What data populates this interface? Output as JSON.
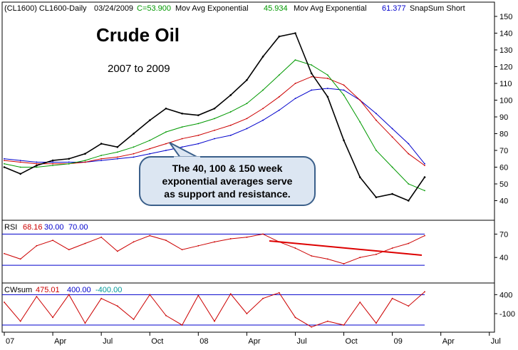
{
  "header": {
    "symbol": "(CL1600) CL1600-Daily",
    "date": "03/24/2009",
    "close": "C=53.900",
    "ma1_label": "Mov Avg Exponential",
    "ma1_value": "45.934",
    "ma2_label": "Mov Avg Exponential",
    "ma2_value": "61.377",
    "snap_label": "SnapSum Short"
  },
  "annotation": {
    "title": "Crude Oil",
    "subtitle": "2007 to 2009",
    "callout_lines": [
      "The 40, 100 & 150 week",
      "exponential averages serve",
      "as support and resistance."
    ]
  },
  "colors": {
    "price": "#000000",
    "ema40": "#009900",
    "ema100": "#cc0000",
    "ema150": "#0000cc",
    "rsi": "#cc0000",
    "bands": "#0000cc",
    "trendline": "#dd0000",
    "callout_fill": "#dce6f2",
    "callout_stroke": "#3a5f8a"
  },
  "chart_data": [
    {
      "type": "line",
      "panel": "price",
      "ylim": [
        30,
        150
      ],
      "yticks": [
        "150",
        "140",
        "130",
        "120",
        "110",
        "100",
        "90",
        "80",
        "70",
        "60",
        "50",
        "40"
      ],
      "x": [
        "2007-01",
        "2007-02",
        "2007-03",
        "2007-04",
        "2007-05",
        "2007-06",
        "2007-07",
        "2007-08",
        "2007-09",
        "2007-10",
        "2007-11",
        "2007-12",
        "2008-01",
        "2008-02",
        "2008-03",
        "2008-04",
        "2008-05",
        "2008-06",
        "2008-07",
        "2008-08",
        "2008-09",
        "2008-10",
        "2008-11",
        "2008-12",
        "2009-01",
        "2009-02",
        "2009-03"
      ],
      "xtick_labels": [
        "07",
        "Apr",
        "Jul",
        "Oct",
        "08",
        "Apr",
        "Jul",
        "Oct",
        "09",
        "Apr",
        "Jul"
      ],
      "series": [
        {
          "key": "price",
          "values": [
            60,
            56,
            61,
            64,
            65,
            68,
            74,
            72,
            80,
            88,
            95,
            92,
            91,
            95,
            103,
            112,
            126,
            138,
            140,
            116,
            102,
            76,
            54,
            42,
            44,
            40,
            54
          ]
        },
        {
          "key": "ema40",
          "values": [
            62,
            60,
            60,
            61,
            62,
            64,
            67,
            69,
            72,
            76,
            81,
            84,
            86,
            89,
            93,
            98,
            106,
            115,
            124,
            121,
            115,
            103,
            87,
            70,
            60,
            50,
            46
          ]
        },
        {
          "key": "ema100",
          "values": [
            64,
            63,
            62,
            62,
            62,
            63,
            65,
            66,
            68,
            71,
            74,
            77,
            79,
            82,
            85,
            89,
            95,
            102,
            110,
            114,
            113,
            109,
            100,
            88,
            78,
            68,
            61
          ]
        },
        {
          "key": "ema150",
          "values": [
            65,
            64,
            63,
            63,
            63,
            63,
            64,
            65,
            66,
            68,
            70,
            72,
            74,
            77,
            79,
            83,
            88,
            94,
            101,
            106,
            107,
            106,
            100,
            92,
            83,
            74,
            62
          ]
        }
      ]
    },
    {
      "type": "line",
      "panel": "rsi",
      "label": "RSI",
      "value": "68.16",
      "lower_band": "30.00",
      "upper_band": "70.00",
      "ylim": [
        10,
        85
      ],
      "yticks": [
        "70",
        "40"
      ],
      "values": [
        45,
        38,
        55,
        62,
        50,
        58,
        66,
        48,
        60,
        68,
        62,
        50,
        55,
        60,
        64,
        66,
        70,
        60,
        52,
        42,
        38,
        32,
        40,
        44,
        52,
        58,
        68
      ]
    },
    {
      "type": "line",
      "panel": "cwsum",
      "label": "CWsum",
      "value": "475.01",
      "upper_band": "400.00",
      "lower_band": "-400.00",
      "ylim": [
        -550,
        650
      ],
      "yticks": [
        "400",
        "-100"
      ],
      "values": [
        200,
        -300,
        350,
        -200,
        400,
        -350,
        300,
        100,
        -250,
        400,
        -150,
        -400,
        380,
        -300,
        420,
        -100,
        300,
        450,
        -200,
        -450,
        -300,
        -400,
        200,
        -350,
        300,
        100,
        475
      ]
    }
  ]
}
